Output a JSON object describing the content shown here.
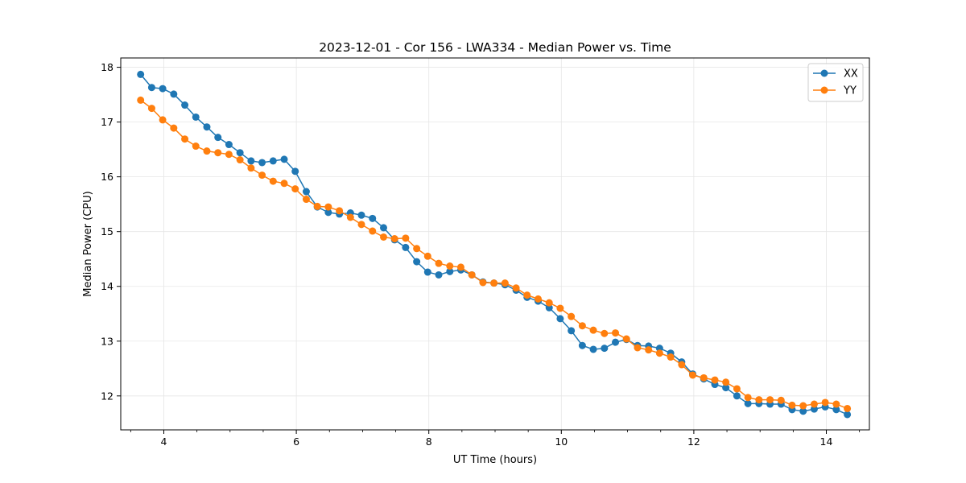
{
  "chart_data": {
    "type": "line",
    "title": "2023-12-01 - Cor 156 - LWA334 - Median Power vs. Time",
    "xlabel": "UT Time (hours)",
    "ylabel": "Median Power (CPU)",
    "xlim": [
      3.35,
      14.65
    ],
    "ylim": [
      11.38,
      18.17
    ],
    "xticks": [
      4,
      6,
      8,
      10,
      12,
      14
    ],
    "yticks": [
      12,
      13,
      14,
      15,
      16,
      17,
      18
    ],
    "xtick_labels": [
      "4",
      "6",
      "8",
      "10",
      "12",
      "14"
    ],
    "ytick_labels": [
      "12",
      "13",
      "14",
      "15",
      "16",
      "17",
      "18"
    ],
    "grid": true,
    "legend_position": "top-right",
    "x": [
      3.65,
      3.817,
      3.983,
      4.15,
      4.317,
      4.483,
      4.65,
      4.817,
      4.983,
      5.15,
      5.317,
      5.483,
      5.65,
      5.817,
      5.983,
      6.15,
      6.317,
      6.483,
      6.65,
      6.817,
      6.983,
      7.15,
      7.317,
      7.483,
      7.65,
      7.817,
      7.983,
      8.15,
      8.317,
      8.483,
      8.65,
      8.817,
      8.983,
      9.15,
      9.317,
      9.483,
      9.65,
      9.817,
      9.983,
      10.15,
      10.317,
      10.483,
      10.65,
      10.817,
      10.983,
      11.15,
      11.317,
      11.483,
      11.65,
      11.817,
      11.983,
      12.15,
      12.317,
      12.483,
      12.65,
      12.817,
      12.983,
      13.15,
      13.317,
      13.483,
      13.65,
      13.817,
      13.983,
      14.15,
      14.317
    ],
    "series": [
      {
        "name": "XX",
        "color": "#1f77b4",
        "values": [
          17.87,
          17.63,
          17.61,
          17.51,
          17.31,
          17.09,
          16.91,
          16.72,
          16.59,
          16.44,
          16.29,
          16.26,
          16.29,
          16.32,
          16.1,
          15.73,
          15.45,
          15.35,
          15.32,
          15.34,
          15.3,
          15.24,
          15.07,
          14.85,
          14.71,
          14.45,
          14.26,
          14.21,
          14.27,
          14.3,
          14.21,
          14.08,
          14.06,
          14.03,
          13.93,
          13.8,
          13.73,
          13.61,
          13.41,
          13.19,
          12.92,
          12.85,
          12.87,
          12.98,
          13.03,
          12.92,
          12.91,
          12.87,
          12.78,
          12.62,
          12.4,
          12.31,
          12.21,
          12.15,
          12.0,
          11.86,
          11.86,
          11.85,
          11.85,
          11.75,
          11.72,
          11.76,
          11.8,
          11.75,
          11.66
        ]
      },
      {
        "name": "YY",
        "color": "#ff7f0e",
        "values": [
          17.4,
          17.25,
          17.04,
          16.89,
          16.69,
          16.56,
          16.47,
          16.44,
          16.41,
          16.31,
          16.16,
          16.03,
          15.92,
          15.88,
          15.78,
          15.59,
          15.46,
          15.45,
          15.38,
          15.26,
          15.13,
          15.01,
          14.9,
          14.87,
          14.88,
          14.69,
          14.55,
          14.42,
          14.37,
          14.35,
          14.21,
          14.07,
          14.06,
          14.06,
          13.97,
          13.84,
          13.77,
          13.7,
          13.6,
          13.45,
          13.28,
          13.2,
          13.14,
          13.15,
          13.04,
          12.88,
          12.84,
          12.78,
          12.71,
          12.57,
          12.38,
          12.33,
          12.29,
          12.25,
          12.13,
          11.97,
          11.93,
          11.93,
          11.92,
          11.83,
          11.82,
          11.85,
          11.88,
          11.85,
          11.77
        ]
      }
    ]
  }
}
